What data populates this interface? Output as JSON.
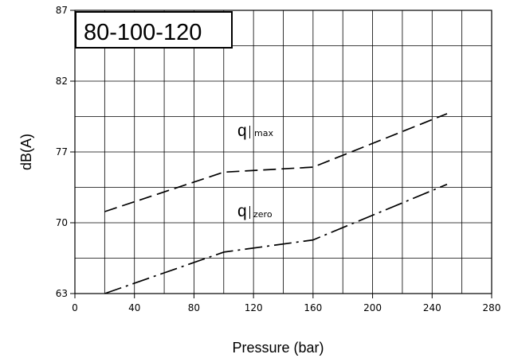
{
  "chart_data": {
    "type": "line",
    "title": "80-100-120",
    "xlabel": "Pressure (bar)",
    "ylabel": "dB(A)",
    "xlim": [
      0,
      280
    ],
    "ylim": [
      63,
      87
    ],
    "x_ticks": [
      "0",
      "40",
      "80",
      "120",
      "160",
      "200",
      "240",
      "280"
    ],
    "y_ticks": [
      "63",
      "70",
      "77",
      "82",
      "87"
    ],
    "grid": true,
    "series": [
      {
        "name": "q max",
        "label_main": "q",
        "label_sub": "max",
        "line_style": "dashed",
        "x": [
          20,
          100,
          160,
          250
        ],
        "y": [
          71.1,
          75.0,
          75.5,
          79.7
        ]
      },
      {
        "name": "q zero",
        "label_main": "q",
        "label_sub": "zero",
        "line_style": "dash-dot",
        "x": [
          20,
          100,
          160,
          250
        ],
        "y": [
          63.0,
          67.1,
          68.3,
          73.8
        ]
      }
    ]
  }
}
